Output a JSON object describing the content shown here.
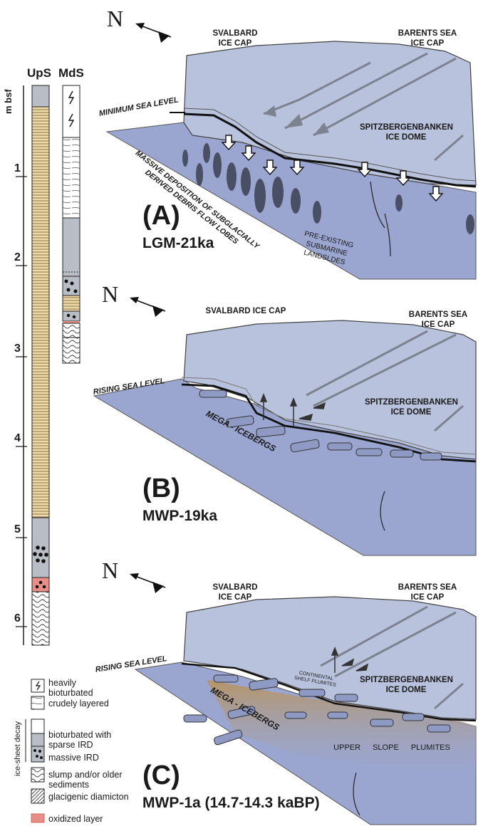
{
  "columns": {
    "ups_label": "UpS",
    "mds_label": "MdS",
    "axis_label": "m bsf",
    "depth_ticks": [
      "1",
      "2",
      "3",
      "4",
      "5",
      "6"
    ]
  },
  "legend": {
    "heavily_bioturbated": "heavily bioturbated",
    "crudely_layered": "crudely layered",
    "group_label": "ice-sheet decay",
    "bioturbated_sparse_ird": "bioturbated with sparse IRD",
    "massive_ird": "massive IRD",
    "slump": "slump and/or older sediments",
    "glacigenic": "glacigenic diamicton",
    "oxidized": "oxidized layer"
  },
  "north": "N",
  "panels": [
    {
      "letter": "(A)",
      "period": "LGM-21ka",
      "svalbard": "SVALBARD ICE CAP",
      "barents": "BARENTS SEA ICE CAP",
      "dome": "SPITZBERGENBANKEN ICE DOME",
      "sea_level": "MINIMUM SEA LEVEL",
      "note1": "MASSIVE DEPOSITION OF SUBGLACIALLY DERIVED DEBRIS FLOW LOBES",
      "note2": "PRE-EXISTING SUBMARINE LANDSLDES"
    },
    {
      "letter": "(B)",
      "period": "MWP-19ka",
      "svalbard": "SVALBARD ICE CAP",
      "barents": "BARENTS SEA ICE CAP",
      "dome": "SPITZBERGENBANKEN ICE DOME",
      "sea_level": "RISING SEA LEVEL",
      "icebergs": "MEGA - ICEBERGS"
    },
    {
      "letter": "(C)",
      "period": "MWP-1a (14.7-14.3 kaBP)",
      "svalbard": "SVALBARD ICE CAP",
      "barents": "BARENTS SEA ICE CAP",
      "dome": "SPITZBERGENBANKEN ICE DOME",
      "sea_level": "RISING SEA LEVEL",
      "icebergs": "MEGA - ICEBERGS",
      "shelf": "CONTINENTAL SHELF PLUMITES",
      "plumites": "UPPER SLOPE PLUMITES"
    }
  ],
  "colors": {
    "ice": "#b8c2dc",
    "slope": "#9aa6d0",
    "sand": "#efd9a6",
    "grey": "#b9bec6",
    "oxidized": "#e98e86",
    "plume": "#c8aa70"
  }
}
